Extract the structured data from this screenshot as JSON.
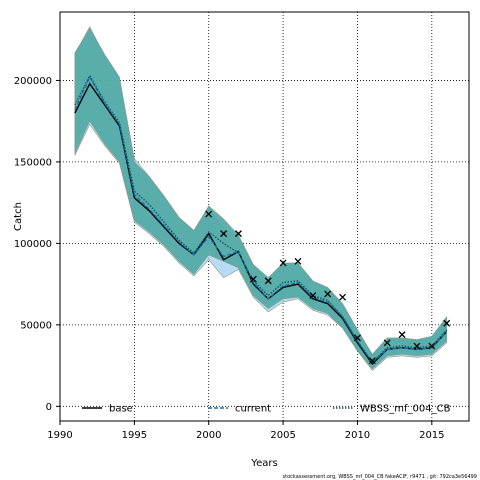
{
  "chart_data": {
    "type": "line",
    "xlabel": "Years",
    "ylabel": "Catch",
    "xlim": [
      1990,
      2017.5
    ],
    "ylim": [
      -9000,
      242000
    ],
    "xticks": [
      1990,
      1995,
      2000,
      2005,
      2010,
      2015
    ],
    "yticks": [
      0,
      50000,
      100000,
      150000,
      200000
    ],
    "grid": true,
    "legend_position": "bottom",
    "footer": "stockassessment.org, WBSS_mf_004_CB fakeACIF, r9471 , git: 792ca3e56499",
    "observed": {
      "x": [
        2000,
        2001,
        2002,
        2003,
        2004,
        2005,
        2006,
        2007,
        2008,
        2009,
        2010,
        2011,
        2012,
        2013,
        2014,
        2015,
        2016
      ],
      "y": [
        118000,
        106000,
        106000,
        78000,
        77000,
        88000,
        89000,
        68000,
        69000,
        67000,
        42000,
        28000,
        39000,
        44000,
        37000,
        37000,
        51000
      ]
    },
    "series": [
      {
        "name": "base",
        "color": "#000000",
        "style": "solid",
        "x": [
          1991,
          1992,
          1993,
          1994,
          1995,
          1996,
          1997,
          1998,
          1999,
          2000,
          2001,
          2002,
          2003,
          2004,
          2005,
          2006,
          2007,
          2008,
          2009,
          2010,
          2011,
          2012,
          2013,
          2014,
          2015,
          2016
        ],
        "y": [
          180000,
          198000,
          185000,
          172000,
          128000,
          120000,
          110000,
          100000,
          93000,
          106000,
          90000,
          95000,
          75000,
          66000,
          73000,
          75000,
          66000,
          63000,
          54000,
          39000,
          26000,
          35000,
          36000,
          35000,
          36000,
          46000
        ],
        "lower": [
          152000,
          170000,
          160000,
          148000,
          112000,
          105000,
          97000,
          87000,
          80000,
          92000,
          80000,
          84000,
          66000,
          58000,
          63000,
          66000,
          59000,
          56000,
          47000,
          33000,
          22000,
          30000,
          31000,
          30000,
          31000,
          39000
        ],
        "upper": [
          215000,
          232000,
          215000,
          200000,
          150000,
          140000,
          128000,
          116000,
          107000,
          122000,
          115000,
          104000,
          85000,
          77000,
          85000,
          86000,
          75000,
          71000,
          62000,
          46000,
          31000,
          41000,
          41000,
          40000,
          42000,
          54000
        ]
      },
      {
        "name": "current",
        "color": "#1b6fb0",
        "style": "dashed",
        "band_color": "#9ecfee",
        "x": [
          1991,
          1992,
          1993,
          1994,
          1995,
          1996,
          1997,
          1998,
          1999,
          2000,
          2001,
          2002,
          2003,
          2004,
          2005,
          2006,
          2007,
          2008,
          2009,
          2010,
          2011,
          2012,
          2013,
          2014,
          2015,
          2016
        ],
        "y": [
          182000,
          202000,
          186000,
          173000,
          130000,
          121000,
          111000,
          101000,
          93000,
          104000,
          92000,
          95000,
          76000,
          66000,
          74000,
          76000,
          67000,
          64000,
          55000,
          40000,
          27000,
          35000,
          36000,
          35000,
          36000,
          46000
        ],
        "lower": [
          154000,
          173000,
          160000,
          149000,
          113000,
          106000,
          98000,
          88000,
          80000,
          90000,
          79000,
          84000,
          67000,
          58000,
          64000,
          66000,
          59000,
          56000,
          48000,
          34000,
          22000,
          30000,
          31000,
          30000,
          31000,
          39000
        ],
        "upper": [
          216000,
          233000,
          215000,
          201000,
          152000,
          141000,
          129000,
          116000,
          107000,
          121000,
          109000,
          104000,
          86000,
          77000,
          86000,
          87000,
          76000,
          72000,
          63000,
          47000,
          31000,
          41000,
          41000,
          40000,
          42000,
          54000
        ]
      },
      {
        "name": "WBSS_mf_004_CB",
        "color": "#0d5c5c",
        "style": "dotted",
        "band_color": "#4fa9a4",
        "x": [
          1991,
          1992,
          1993,
          1994,
          1995,
          1996,
          1997,
          1998,
          1999,
          2000,
          2001,
          2002,
          2003,
          2004,
          2005,
          2006,
          2007,
          2008,
          2009,
          2010,
          2011,
          2012,
          2013,
          2014,
          2015,
          2016
        ],
        "y": [
          185000,
          203000,
          187000,
          174000,
          132000,
          124000,
          113000,
          102000,
          94000,
          107000,
          100000,
          94000,
          77000,
          68000,
          76000,
          77000,
          68000,
          65000,
          55000,
          40000,
          27000,
          36000,
          37000,
          36000,
          37000,
          47000
        ],
        "lower": [
          155000,
          175000,
          161000,
          150000,
          114000,
          107000,
          99000,
          89000,
          81000,
          93000,
          89000,
          85000,
          68000,
          60000,
          66000,
          67000,
          60000,
          57000,
          48000,
          34000,
          23000,
          31000,
          32000,
          31000,
          32000,
          40000
        ],
        "upper": [
          217000,
          232000,
          216000,
          202000,
          150000,
          141000,
          129000,
          116000,
          108000,
          123000,
          115000,
          105000,
          87000,
          79000,
          88000,
          88000,
          77000,
          73000,
          63000,
          47000,
          32000,
          42000,
          42000,
          41000,
          43000,
          55000
        ]
      }
    ]
  }
}
